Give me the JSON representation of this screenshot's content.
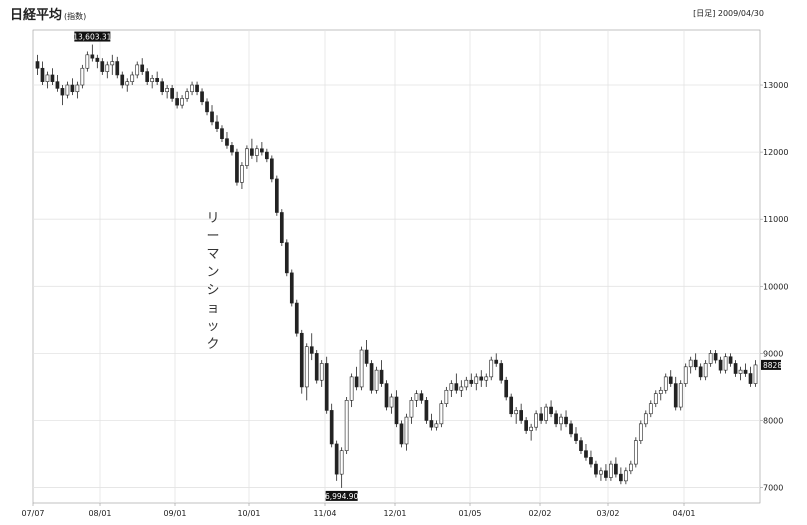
{
  "header": {
    "title": "日経平均",
    "title_sub": "(指数)",
    "date_label": "[日足] 2009/04/30"
  },
  "chart_data": {
    "type": "candlestick",
    "title": "日経平均",
    "period": "日足",
    "y_ticks": [
      7000,
      8000,
      9000,
      10000,
      11000,
      12000,
      13000
    ],
    "ylim": [
      6770,
      13820
    ],
    "x_ticks": [
      "07/07",
      "08/01",
      "09/01",
      "10/01",
      "11/04",
      "12/01",
      "01/05",
      "02/02",
      "03/02",
      "04/01"
    ],
    "x_range": [
      "2008/07/07",
      "2009/04/30"
    ],
    "last_value": "8828",
    "high": {
      "value": 13603.31,
      "label": "13,603.31"
    },
    "low": {
      "value": 6994.9,
      "label": "6,994.90"
    },
    "annotation": "リーマンショック",
    "colors": {
      "up": "#ffffff",
      "down": "#222222",
      "grid": "#e3e3e3",
      "axis": "#999999"
    },
    "grid": true,
    "candles": [
      [
        13350,
        13450,
        13150,
        13250
      ],
      [
        13250,
        13350,
        13000,
        13050
      ],
      [
        13050,
        13200,
        12950,
        13150
      ],
      [
        13150,
        13250,
        13000,
        13050
      ],
      [
        13050,
        13150,
        12900,
        12950
      ],
      [
        12950,
        13000,
        12700,
        12850
      ],
      [
        12850,
        13050,
        12800,
        13000
      ],
      [
        13000,
        13100,
        12850,
        12900
      ],
      [
        12900,
        13050,
        12800,
        13000
      ],
      [
        13000,
        13300,
        12950,
        13250
      ],
      [
        13250,
        13500,
        13200,
        13450
      ],
      [
        13450,
        13603,
        13350,
        13400
      ],
      [
        13400,
        13450,
        13250,
        13350
      ],
      [
        13350,
        13400,
        13150,
        13200
      ],
      [
        13200,
        13350,
        13100,
        13300
      ],
      [
        13300,
        13450,
        13150,
        13350
      ],
      [
        13350,
        13420,
        13100,
        13150
      ],
      [
        13150,
        13200,
        12950,
        13000
      ],
      [
        13000,
        13100,
        12900,
        13050
      ],
      [
        13050,
        13200,
        13000,
        13150
      ],
      [
        13150,
        13350,
        13100,
        13300
      ],
      [
        13300,
        13400,
        13150,
        13200
      ],
      [
        13200,
        13250,
        13000,
        13050
      ],
      [
        13050,
        13150,
        12950,
        13100
      ],
      [
        13100,
        13200,
        13000,
        13050
      ],
      [
        13050,
        13100,
        12850,
        12900
      ],
      [
        12900,
        13000,
        12800,
        12950
      ],
      [
        12950,
        13000,
        12750,
        12800
      ],
      [
        12800,
        12900,
        12650,
        12700
      ],
      [
        12700,
        12850,
        12650,
        12800
      ],
      [
        12800,
        12950,
        12750,
        12900
      ],
      [
        12900,
        13050,
        12850,
        13000
      ],
      [
        13000,
        13050,
        12850,
        12900
      ],
      [
        12900,
        12950,
        12700,
        12750
      ],
      [
        12750,
        12800,
        12550,
        12600
      ],
      [
        12600,
        12700,
        12400,
        12450
      ],
      [
        12450,
        12550,
        12300,
        12350
      ],
      [
        12350,
        12400,
        12150,
        12200
      ],
      [
        12200,
        12300,
        12050,
        12100
      ],
      [
        12100,
        12150,
        11950,
        12000
      ],
      [
        12000,
        12050,
        11500,
        11550
      ],
      [
        11550,
        11850,
        11450,
        11800
      ],
      [
        11800,
        12100,
        11750,
        12050
      ],
      [
        12050,
        12200,
        11900,
        11950
      ],
      [
        11950,
        12100,
        11850,
        12050
      ],
      [
        12050,
        12150,
        11950,
        12000
      ],
      [
        12000,
        12050,
        11850,
        11900
      ],
      [
        11900,
        11950,
        11550,
        11600
      ],
      [
        11600,
        11650,
        11050,
        11100
      ],
      [
        11100,
        11150,
        10600,
        10650
      ],
      [
        10650,
        10700,
        10150,
        10200
      ],
      [
        10200,
        10250,
        9700,
        9750
      ],
      [
        9750,
        9800,
        9250,
        9300
      ],
      [
        9300,
        9350,
        8400,
        8500
      ],
      [
        8500,
        9150,
        8300,
        9100
      ],
      [
        9100,
        9300,
        8900,
        9000
      ],
      [
        9000,
        9050,
        8550,
        8600
      ],
      [
        8600,
        8900,
        8500,
        8850
      ],
      [
        8850,
        8950,
        8100,
        8150
      ],
      [
        8150,
        8250,
        7600,
        7650
      ],
      [
        7650,
        7700,
        7100,
        7200
      ],
      [
        7200,
        7600,
        6995,
        7550
      ],
      [
        7550,
        8350,
        7500,
        8300
      ],
      [
        8300,
        8700,
        8200,
        8650
      ],
      [
        8650,
        8800,
        8450,
        8500
      ],
      [
        8500,
        9100,
        8450,
        9050
      ],
      [
        9050,
        9200,
        8800,
        8850
      ],
      [
        8850,
        8900,
        8400,
        8450
      ],
      [
        8450,
        8800,
        8400,
        8750
      ],
      [
        8750,
        8900,
        8500,
        8550
      ],
      [
        8550,
        8600,
        8150,
        8200
      ],
      [
        8200,
        8400,
        8100,
        8350
      ],
      [
        8350,
        8450,
        7900,
        7950
      ],
      [
        7950,
        8000,
        7600,
        7650
      ],
      [
        7650,
        8100,
        7550,
        8050
      ],
      [
        8050,
        8350,
        7950,
        8300
      ],
      [
        8300,
        8450,
        8200,
        8400
      ],
      [
        8400,
        8450,
        8250,
        8300
      ],
      [
        8300,
        8350,
        7950,
        8000
      ],
      [
        8000,
        8100,
        7850,
        7900
      ],
      [
        7900,
        8000,
        7850,
        7950
      ],
      [
        7950,
        8300,
        7900,
        8250
      ],
      [
        8250,
        8500,
        8200,
        8450
      ],
      [
        8450,
        8600,
        8350,
        8550
      ],
      [
        8550,
        8700,
        8400,
        8450
      ],
      [
        8450,
        8600,
        8350,
        8500
      ],
      [
        8500,
        8650,
        8450,
        8600
      ],
      [
        8600,
        8700,
        8500,
        8550
      ],
      [
        8550,
        8700,
        8450,
        8650
      ],
      [
        8650,
        8750,
        8500,
        8600
      ],
      [
        8600,
        8700,
        8500,
        8650
      ],
      [
        8650,
        8950,
        8600,
        8900
      ],
      [
        8900,
        9000,
        8800,
        8850
      ],
      [
        8850,
        8900,
        8550,
        8600
      ],
      [
        8600,
        8650,
        8300,
        8350
      ],
      [
        8350,
        8400,
        8050,
        8100
      ],
      [
        8100,
        8200,
        7950,
        8150
      ],
      [
        8150,
        8250,
        7950,
        8000
      ],
      [
        8000,
        8050,
        7800,
        7850
      ],
      [
        7850,
        7950,
        7700,
        7900
      ],
      [
        7900,
        8150,
        7850,
        8100
      ],
      [
        8100,
        8200,
        7950,
        8000
      ],
      [
        8000,
        8250,
        7950,
        8200
      ],
      [
        8200,
        8300,
        8050,
        8100
      ],
      [
        8100,
        8150,
        7900,
        7950
      ],
      [
        7950,
        8100,
        7850,
        8050
      ],
      [
        8050,
        8150,
        7900,
        7950
      ],
      [
        7950,
        8000,
        7750,
        7800
      ],
      [
        7800,
        7900,
        7650,
        7700
      ],
      [
        7700,
        7750,
        7500,
        7550
      ],
      [
        7550,
        7650,
        7400,
        7450
      ],
      [
        7450,
        7550,
        7300,
        7350
      ],
      [
        7350,
        7400,
        7150,
        7200
      ],
      [
        7200,
        7300,
        7100,
        7250
      ],
      [
        7250,
        7350,
        7100,
        7150
      ],
      [
        7150,
        7400,
        7100,
        7350
      ],
      [
        7350,
        7450,
        7150,
        7200
      ],
      [
        7200,
        7300,
        7050,
        7100
      ],
      [
        7100,
        7300,
        7050,
        7250
      ],
      [
        7250,
        7400,
        7200,
        7350
      ],
      [
        7350,
        7750,
        7300,
        7700
      ],
      [
        7700,
        8000,
        7650,
        7950
      ],
      [
        7950,
        8150,
        7900,
        8100
      ],
      [
        8100,
        8300,
        8050,
        8250
      ],
      [
        8250,
        8450,
        8200,
        8400
      ],
      [
        8400,
        8500,
        8300,
        8450
      ],
      [
        8450,
        8700,
        8400,
        8650
      ],
      [
        8650,
        8750,
        8500,
        8550
      ],
      [
        8550,
        8650,
        8150,
        8200
      ],
      [
        8200,
        8600,
        8150,
        8550
      ],
      [
        8550,
        8850,
        8500,
        8800
      ],
      [
        8800,
        8950,
        8700,
        8900
      ],
      [
        8900,
        9000,
        8750,
        8800
      ],
      [
        8800,
        8850,
        8600,
        8650
      ],
      [
        8650,
        8900,
        8600,
        8850
      ],
      [
        8850,
        9050,
        8800,
        9000
      ],
      [
        9000,
        9050,
        8850,
        8900
      ],
      [
        8900,
        8950,
        8700,
        8750
      ],
      [
        8750,
        9000,
        8700,
        8950
      ],
      [
        8950,
        9000,
        8800,
        8850
      ],
      [
        8850,
        8900,
        8650,
        8700
      ],
      [
        8700,
        8800,
        8600,
        8750
      ],
      [
        8750,
        8850,
        8650,
        8700
      ],
      [
        8700,
        8800,
        8500,
        8550
      ],
      [
        8550,
        8900,
        8500,
        8828
      ]
    ]
  }
}
